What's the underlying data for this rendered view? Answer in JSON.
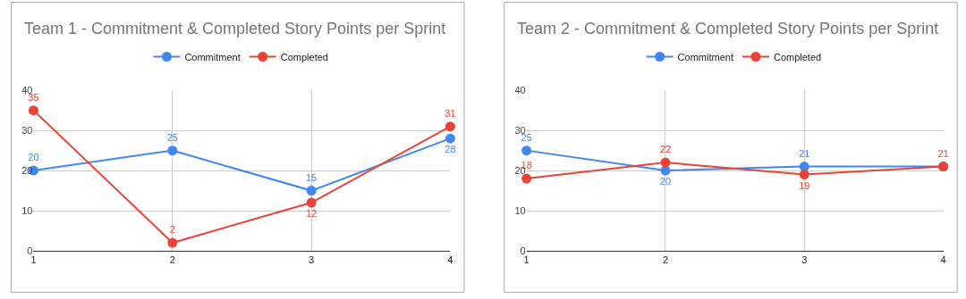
{
  "chart_data": [
    {
      "type": "line",
      "title": "Team 1 - Commitment & Completed Story Points per Sprint",
      "x": [
        1,
        2,
        3,
        4
      ],
      "xlim": [
        1,
        4
      ],
      "xticks": [
        1,
        2,
        3,
        4
      ],
      "ylim": [
        0,
        40
      ],
      "yticks": [
        0,
        10,
        20,
        30,
        40
      ],
      "grid": true,
      "legend": "top",
      "marker": "circle",
      "data_labels": true,
      "series": [
        {
          "name": "Commitment",
          "color": "#4285f4",
          "values": [
            20,
            25,
            15,
            28
          ]
        },
        {
          "name": "Completed",
          "color": "#ea4335",
          "values": [
            35,
            2,
            12,
            31
          ]
        }
      ]
    },
    {
      "type": "line",
      "title": "Team 2 - Commitment & Completed Story Points per Sprint",
      "x": [
        1,
        2,
        3,
        4
      ],
      "xlim": [
        1,
        4
      ],
      "xticks": [
        1,
        2,
        3,
        4
      ],
      "ylim": [
        0,
        40
      ],
      "yticks": [
        0,
        10,
        20,
        30,
        40
      ],
      "grid": true,
      "legend": "top",
      "marker": "circle",
      "series": [
        {
          "name": "Commitment",
          "color": "#4285f4",
          "values": [
            25,
            20,
            21,
            21
          ],
          "value_labels": [
            "25",
            "20",
            "21",
            null
          ]
        },
        {
          "name": "Completed",
          "color": "#ea4335",
          "values": [
            18,
            22,
            19,
            21
          ],
          "value_labels": [
            "18",
            "22",
            "19",
            "21"
          ]
        }
      ]
    }
  ]
}
